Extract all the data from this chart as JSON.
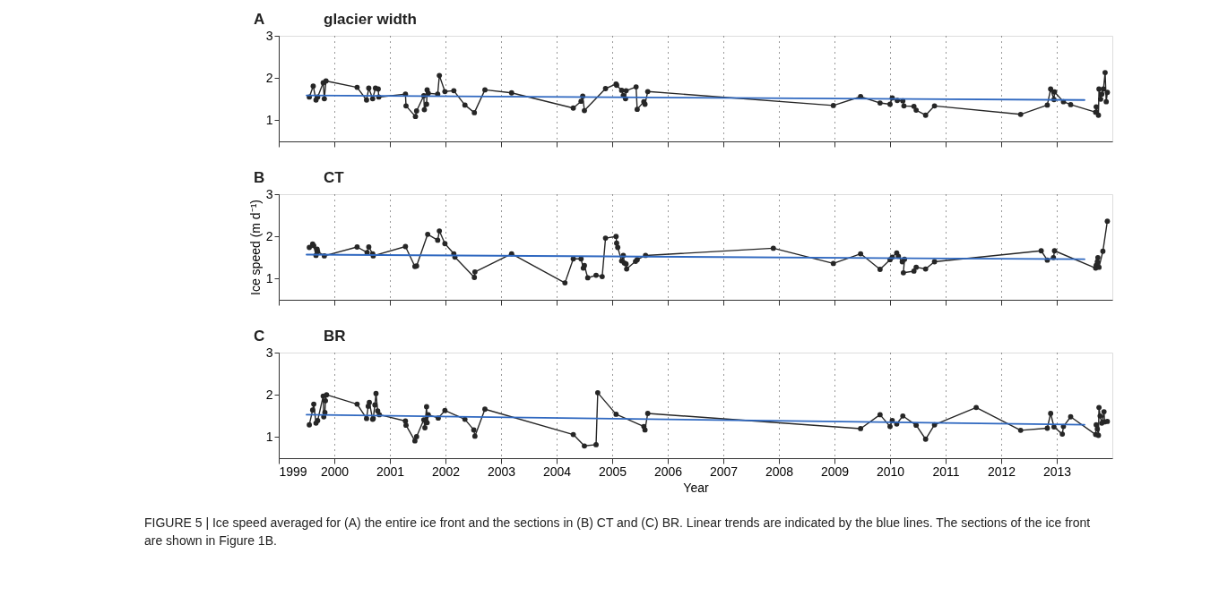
{
  "chart_data": [
    {
      "type": "line",
      "title": "glacier width",
      "annotations": [
        "A"
      ],
      "xlim": [
        1999,
        2014
      ],
      "xticks": [
        1999,
        2000,
        2001,
        2002,
        2003,
        2004,
        2005,
        2006,
        2007,
        2008,
        2009,
        2010,
        2011,
        2012,
        2013
      ],
      "ylim": [
        0.5,
        3
      ],
      "yticks": [
        1,
        2,
        3
      ],
      "grid": "x",
      "marker": "circle",
      "tick_labels": "y",
      "series": [
        {
          "color": "#262626",
          "x": [
            1999.55,
            1999.62,
            1999.67,
            1999.7,
            1999.8,
            1999.82,
            1999.85,
            2000.41,
            2000.58,
            2000.62,
            2000.69,
            2000.74,
            2000.79,
            2000.8,
            2001.28,
            2001.29,
            2001.46,
            2001.48,
            2001.61,
            2001.62,
            2001.66,
            2001.67,
            2001.69,
            2001.86,
            2001.89,
            2001.99,
            2002.15,
            2002.35,
            2002.52,
            2002.71,
            2003.19,
            2004.3,
            2004.44,
            2004.47,
            2004.5,
            2004.88,
            2005.07,
            2005.08,
            2005.17,
            2005.2,
            2005.24,
            2005.25,
            2005.43,
            2005.45,
            2005.57,
            2005.59,
            2005.64,
            2008.98,
            2009.47,
            2009.82,
            2010.0,
            2010.04,
            2010.13,
            2010.23,
            2010.25,
            2010.43,
            2010.47,
            2010.64,
            2010.8,
            2012.35,
            2012.83,
            2012.89,
            2012.95,
            2012.96,
            2013.12,
            2013.25,
            2013.7,
            2013.71,
            2013.75,
            2013.76,
            2013.79,
            2013.81,
            2013.84,
            2013.87,
            2013.89,
            2013.91
          ],
          "values": [
            1.55,
            1.81,
            1.48,
            1.55,
            1.89,
            1.51,
            1.93,
            1.78,
            1.48,
            1.76,
            1.51,
            1.76,
            1.74,
            1.55,
            1.62,
            1.34,
            1.09,
            1.22,
            1.58,
            1.25,
            1.38,
            1.72,
            1.64,
            1.62,
            2.06,
            1.68,
            1.7,
            1.36,
            1.18,
            1.72,
            1.65,
            1.29,
            1.45,
            1.57,
            1.23,
            1.75,
            1.86,
            1.83,
            1.71,
            1.59,
            1.51,
            1.7,
            1.79,
            1.26,
            1.44,
            1.38,
            1.68,
            1.35,
            1.56,
            1.41,
            1.38,
            1.53,
            1.47,
            1.46,
            1.34,
            1.33,
            1.24,
            1.12,
            1.34,
            1.14,
            1.36,
            1.74,
            1.49,
            1.67,
            1.44,
            1.37,
            1.19,
            1.32,
            1.12,
            1.74,
            1.5,
            1.62,
            1.74,
            2.13,
            1.44,
            1.66
          ]
        },
        {
          "color": "#2f68c0",
          "marker": "none",
          "x": [
            1999.5,
            2013.5
          ],
          "values": [
            1.59,
            1.48
          ]
        }
      ]
    },
    {
      "type": "line",
      "title": "CT",
      "annotations": [
        "B"
      ],
      "ylabel": "Ice speed (m d⁻¹)",
      "xlim": [
        1999,
        2014
      ],
      "xticks": [
        1999,
        2000,
        2001,
        2002,
        2003,
        2004,
        2005,
        2006,
        2007,
        2008,
        2009,
        2010,
        2011,
        2012,
        2013
      ],
      "ylim": [
        0.5,
        3
      ],
      "yticks": [
        1,
        2,
        3
      ],
      "grid": "x",
      "marker": "circle",
      "tick_labels": "y",
      "series": [
        {
          "color": "#262626",
          "x": [
            1999.55,
            1999.61,
            1999.63,
            1999.67,
            1999.69,
            1999.7,
            1999.82,
            2000.41,
            2000.59,
            2000.62,
            2000.69,
            2000.7,
            2001.28,
            2001.45,
            2001.48,
            2001.68,
            2001.86,
            2001.89,
            2001.99,
            2002.15,
            2002.17,
            2002.52,
            2002.53,
            2003.19,
            2004.15,
            2004.3,
            2004.44,
            2004.48,
            2004.5,
            2004.56,
            2004.71,
            2004.82,
            2004.88,
            2005.07,
            2005.08,
            2005.1,
            2005.17,
            2005.2,
            2005.22,
            2005.25,
            2005.26,
            2005.42,
            2005.45,
            2005.6,
            2007.9,
            2008.98,
            2009.47,
            2009.82,
            2010.0,
            2010.04,
            2010.12,
            2010.15,
            2010.22,
            2010.26,
            2010.24,
            2010.43,
            2010.47,
            2010.64,
            2010.8,
            2012.72,
            2012.83,
            2012.94,
            2012.96,
            2013.7,
            2013.71,
            2013.73,
            2013.74,
            2013.76,
            2013.83,
            2013.91
          ],
          "values": [
            1.74,
            1.82,
            1.78,
            1.55,
            1.7,
            1.64,
            1.54,
            1.75,
            1.62,
            1.75,
            1.59,
            1.54,
            1.76,
            1.29,
            1.3,
            2.05,
            1.91,
            2.13,
            1.83,
            1.59,
            1.51,
            1.03,
            1.16,
            1.59,
            0.9,
            1.47,
            1.47,
            1.25,
            1.31,
            1.02,
            1.08,
            1.05,
            1.96,
            2.0,
            1.84,
            1.74,
            1.42,
            1.55,
            1.37,
            1.35,
            1.23,
            1.41,
            1.45,
            1.55,
            1.72,
            1.36,
            1.59,
            1.22,
            1.45,
            1.51,
            1.61,
            1.53,
            1.4,
            1.46,
            1.14,
            1.18,
            1.27,
            1.23,
            1.4,
            1.66,
            1.44,
            1.5,
            1.66,
            1.25,
            1.32,
            1.4,
            1.5,
            1.27,
            1.65,
            2.36
          ]
        },
        {
          "color": "#2f68c0",
          "marker": "none",
          "x": [
            1999.5,
            2013.5
          ],
          "values": [
            1.57,
            1.46
          ]
        }
      ]
    },
    {
      "type": "line",
      "title": "BR",
      "annotations": [
        "C",
        "FIGURE 5 | Ice speed averaged for (A) the entire ice front and the sections in (B) CT and (C) BR. Linear trends are indicated by the blue lines. The sections of the ice front are shown in Figure 1B."
      ],
      "xlabel": "Year",
      "xlim": [
        1999,
        2014
      ],
      "xticks": [
        1999,
        2000,
        2001,
        2002,
        2003,
        2004,
        2005,
        2006,
        2007,
        2008,
        2009,
        2010,
        2011,
        2012,
        2013
      ],
      "ylim": [
        0.5,
        3
      ],
      "yticks": [
        1,
        2,
        3
      ],
      "grid": "x",
      "marker": "circle",
      "series": [
        {
          "color": "#262626",
          "x": [
            1999.55,
            1999.61,
            1999.63,
            1999.67,
            1999.7,
            1999.8,
            1999.81,
            1999.83,
            1999.84,
            1999.86,
            2000.41,
            2000.58,
            2000.61,
            2000.63,
            2000.69,
            2000.7,
            2000.73,
            2000.75,
            2000.78,
            2000.81,
            2001.28,
            2001.29,
            2001.45,
            2001.48,
            2001.61,
            2001.63,
            2001.64,
            2001.66,
            2001.67,
            2001.69,
            2001.87,
            2001.99,
            2002.35,
            2002.51,
            2002.53,
            2002.71,
            2004.3,
            2004.5,
            2004.71,
            2004.74,
            2005.07,
            2005.57,
            2005.59,
            2005.64,
            2009.47,
            2009.82,
            2010.0,
            2010.04,
            2010.12,
            2010.23,
            2010.47,
            2010.64,
            2010.8,
            2011.55,
            2012.35,
            2012.83,
            2012.89,
            2012.95,
            2013.1,
            2013.12,
            2013.25,
            2013.7,
            2013.71,
            2013.73,
            2013.75,
            2013.76,
            2013.78,
            2013.81,
            2013.85,
            2013.86,
            2013.91
          ],
          "values": [
            1.29,
            1.64,
            1.78,
            1.33,
            1.39,
            1.97,
            1.48,
            1.58,
            1.86,
            2.0,
            1.78,
            1.44,
            1.73,
            1.82,
            1.42,
            1.44,
            1.76,
            2.03,
            1.62,
            1.53,
            1.38,
            1.28,
            0.91,
            1.01,
            1.41,
            1.22,
            1.4,
            1.72,
            1.34,
            1.53,
            1.45,
            1.63,
            1.42,
            1.17,
            1.02,
            1.66,
            1.06,
            0.79,
            0.82,
            2.05,
            1.54,
            1.25,
            1.17,
            1.56,
            1.2,
            1.53,
            1.25,
            1.39,
            1.31,
            1.5,
            1.28,
            0.95,
            1.29,
            1.7,
            1.16,
            1.21,
            1.56,
            1.24,
            1.07,
            1.25,
            1.48,
            1.06,
            1.29,
            1.19,
            1.04,
            1.7,
            1.5,
            1.33,
            1.6,
            1.36,
            1.37
          ]
        },
        {
          "color": "#2f68c0",
          "marker": "none",
          "x": [
            1999.5,
            2013.5
          ],
          "values": [
            1.53,
            1.29
          ]
        }
      ]
    }
  ]
}
